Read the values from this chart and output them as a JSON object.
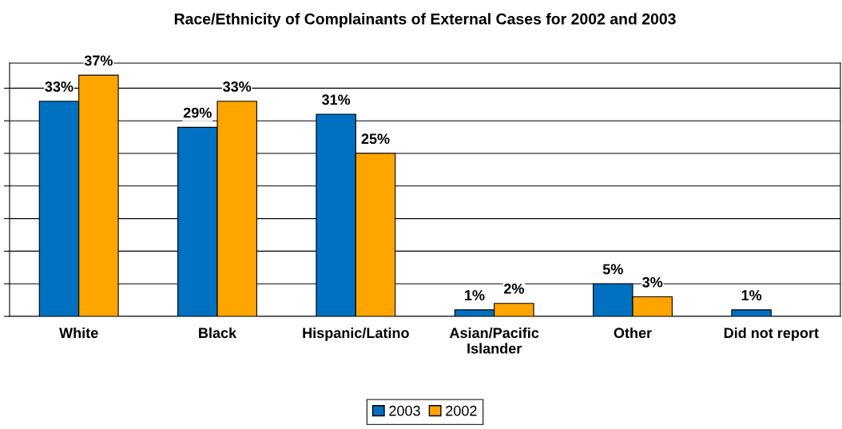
{
  "chart_data": {
    "type": "bar",
    "title": "Race/Ethnicity of Complainants of External Cases for 2002 and 2003",
    "categories": [
      "White",
      "Black",
      "Hispanic/Latino",
      "Asian/Pacific\nIslander",
      "Other",
      "Did not report"
    ],
    "series": [
      {
        "name": "2003",
        "color": "#0070c0",
        "values": [
          33,
          29,
          31,
          1,
          5,
          1
        ],
        "value_labels": [
          "33%",
          "29%",
          "31%",
          "1%",
          "5%",
          "1%"
        ]
      },
      {
        "name": "2002",
        "color": "#ffa500",
        "values": [
          37,
          33,
          25,
          2,
          3,
          null
        ],
        "value_labels": [
          "37%",
          "33%",
          "25%",
          "2%",
          "3%",
          null
        ]
      }
    ],
    "grid": "y",
    "legend": "bottom"
  }
}
